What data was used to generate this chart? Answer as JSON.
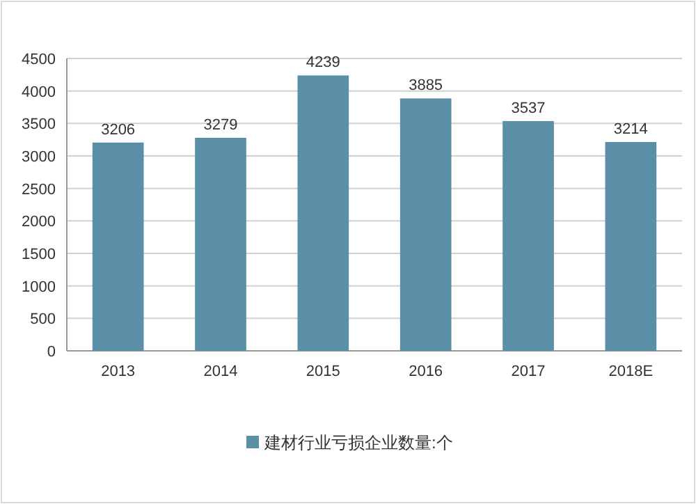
{
  "chart_data": {
    "type": "bar",
    "categories": [
      "2013",
      "2014",
      "2015",
      "2016",
      "2017",
      "2018E"
    ],
    "series": [
      {
        "name": "建材行业亏损企业数量:个",
        "color": "#5b8fa8",
        "values": [
          3206,
          3279,
          4239,
          3885,
          3537,
          3214
        ]
      }
    ],
    "ylim": [
      0,
      4500
    ],
    "yticks": [
      0,
      500,
      1000,
      1500,
      2000,
      2500,
      3000,
      3500,
      4000,
      4500
    ],
    "grid": "y",
    "data_labels": true,
    "legend": "bottom"
  }
}
